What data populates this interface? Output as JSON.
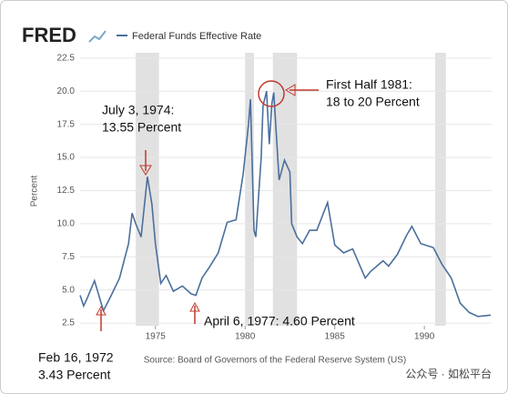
{
  "chart_data": {
    "type": "line",
    "brand": "FRED",
    "title": "Federal Funds Effective Rate",
    "y_label": "Percent",
    "source": "Source: Board of Governors of the Federal Reserve System (US)",
    "watermark": "公众号 · 如松平台",
    "xlim": [
      1970.8,
      1993.75
    ],
    "xticks": [
      1975,
      1980,
      1985,
      1990
    ],
    "ylim": [
      2.3,
      22.9
    ],
    "yticks": [
      {
        "value": 2.5,
        "label": "2.5"
      },
      {
        "value": 5,
        "label": "5.0"
      },
      {
        "value": 7.5,
        "label": "7.5"
      },
      {
        "value": 10,
        "label": "10.0"
      },
      {
        "value": 12.5,
        "label": "12.5"
      },
      {
        "value": 15,
        "label": "15.0"
      },
      {
        "value": 17.5,
        "label": "17.5"
      },
      {
        "value": 20,
        "label": "20.0"
      },
      {
        "value": 22.5,
        "label": "22.5"
      }
    ],
    "grid": true,
    "recessions": [
      [
        1973.9,
        1975.2
      ],
      [
        1980.0,
        1980.5
      ],
      [
        1981.55,
        1982.9
      ],
      [
        1990.6,
        1991.2
      ]
    ],
    "series": [
      {
        "name": "Federal Funds Effective Rate",
        "color": "#4b6f9c",
        "x": [
          1970.8,
          1971.0,
          1971.2,
          1971.6,
          1971.8,
          1972.1,
          1972.5,
          1973.0,
          1973.5,
          1973.7,
          1973.9,
          1974.2,
          1974.55,
          1974.8,
          1975.0,
          1975.3,
          1975.6,
          1976.0,
          1976.5,
          1977.0,
          1977.26,
          1977.6,
          1978.0,
          1978.5,
          1979.0,
          1979.5,
          1979.9,
          1980.2,
          1980.3,
          1980.5,
          1980.6,
          1980.9,
          1981.0,
          1981.2,
          1981.35,
          1981.5,
          1981.6,
          1981.9,
          1982.2,
          1982.5,
          1982.6,
          1982.9,
          1983.2,
          1983.6,
          1984.0,
          1984.6,
          1985.0,
          1985.5,
          1986.0,
          1986.7,
          1987.0,
          1987.7,
          1988.0,
          1988.5,
          1989.0,
          1989.3,
          1989.8,
          1990.5,
          1991.0,
          1991.5,
          1992.0,
          1992.5,
          1993.0,
          1993.7
        ],
        "values": [
          4.6,
          3.8,
          4.4,
          5.7,
          4.8,
          3.43,
          4.5,
          5.9,
          8.5,
          10.8,
          10.0,
          9.0,
          13.55,
          11.5,
          8.5,
          5.5,
          6.1,
          4.9,
          5.3,
          4.7,
          4.6,
          5.9,
          6.7,
          7.8,
          10.1,
          10.3,
          13.8,
          17.6,
          19.4,
          9.5,
          9.0,
          15.0,
          18.9,
          20.0,
          16.0,
          19.1,
          19.9,
          13.3,
          14.8,
          13.9,
          10.0,
          9.0,
          8.5,
          9.5,
          9.5,
          11.6,
          8.4,
          7.8,
          8.1,
          5.9,
          6.4,
          7.2,
          6.8,
          7.7,
          9.1,
          9.8,
          8.5,
          8.2,
          6.9,
          5.9,
          4.0,
          3.3,
          3.0,
          3.1
        ]
      }
    ],
    "annotations": [
      {
        "lines": [
          "July 3, 1974:",
          "13.55 Percent"
        ]
      },
      {
        "lines": [
          "First Half 1981:",
          "18 to 20 Percent"
        ]
      },
      {
        "lines": [
          "April 6, 1977: 4.60 Percent"
        ]
      },
      {
        "lines": [
          "Feb 16, 1972",
          "3.43 Percent"
        ]
      }
    ]
  }
}
